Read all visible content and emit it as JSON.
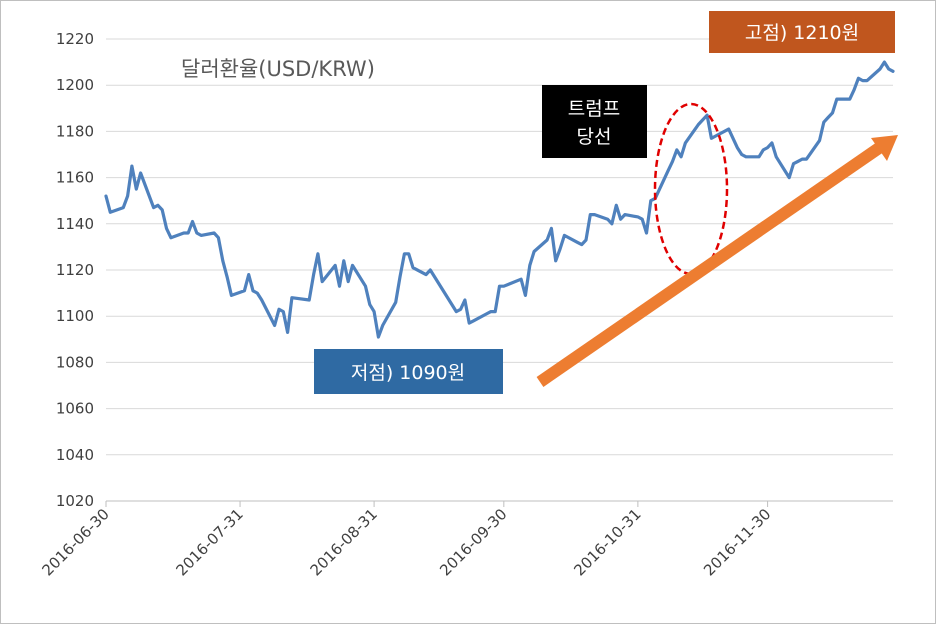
{
  "chart_data": {
    "type": "line",
    "title": "달러환율(USD/KRW)",
    "xlabel": "",
    "ylabel": "",
    "ylim": [
      1020,
      1220
    ],
    "yticks": [
      1020,
      1040,
      1060,
      1080,
      1100,
      1120,
      1140,
      1160,
      1180,
      1200,
      1220
    ],
    "x_ticks": [
      "2016-06-30",
      "2016-07-31",
      "2016-08-31",
      "2016-09-30",
      "2016-10-31",
      "2016-11-30"
    ],
    "grid": "horizontal",
    "line_color": "#4f81bd",
    "series": [
      {
        "x": [
          "2016-06-30",
          "2016-07-01",
          "2016-07-04",
          "2016-07-05",
          "2016-07-06",
          "2016-07-07",
          "2016-07-08",
          "2016-07-11",
          "2016-07-12",
          "2016-07-13",
          "2016-07-14",
          "2016-07-15",
          "2016-07-18",
          "2016-07-19",
          "2016-07-20",
          "2016-07-21",
          "2016-07-22",
          "2016-07-25",
          "2016-07-26",
          "2016-07-27",
          "2016-07-28",
          "2016-07-29",
          "2016-08-01",
          "2016-08-02",
          "2016-08-03",
          "2016-08-04",
          "2016-08-05",
          "2016-08-08",
          "2016-08-09",
          "2016-08-10",
          "2016-08-11",
          "2016-08-12",
          "2016-08-16",
          "2016-08-17",
          "2016-08-18",
          "2016-08-19",
          "2016-08-22",
          "2016-08-23",
          "2016-08-24",
          "2016-08-25",
          "2016-08-26",
          "2016-08-29",
          "2016-08-30",
          "2016-08-31",
          "2016-09-01",
          "2016-09-02",
          "2016-09-05",
          "2016-09-06",
          "2016-09-07",
          "2016-09-08",
          "2016-09-09",
          "2016-09-12",
          "2016-09-13",
          "2016-09-19",
          "2016-09-20",
          "2016-09-21",
          "2016-09-22",
          "2016-09-23",
          "2016-09-26",
          "2016-09-27",
          "2016-09-28",
          "2016-09-29",
          "2016-09-30",
          "2016-10-04",
          "2016-10-05",
          "2016-10-06",
          "2016-10-07",
          "2016-10-10",
          "2016-10-11",
          "2016-10-12",
          "2016-10-13",
          "2016-10-14",
          "2016-10-17",
          "2016-10-18",
          "2016-10-19",
          "2016-10-20",
          "2016-10-21",
          "2016-10-24",
          "2016-10-25",
          "2016-10-26",
          "2016-10-27",
          "2016-10-28",
          "2016-10-31",
          "2016-11-01",
          "2016-11-02",
          "2016-11-03",
          "2016-11-04",
          "2016-11-07",
          "2016-11-08",
          "2016-11-09",
          "2016-11-10",
          "2016-11-11",
          "2016-11-14",
          "2016-11-15",
          "2016-11-16",
          "2016-11-17",
          "2016-11-18",
          "2016-11-21",
          "2016-11-22",
          "2016-11-23",
          "2016-11-24",
          "2016-11-25",
          "2016-11-28",
          "2016-11-29",
          "2016-11-30",
          "2016-12-01",
          "2016-12-02",
          "2016-12-05",
          "2016-12-06",
          "2016-12-07",
          "2016-12-08",
          "2016-12-09",
          "2016-12-12",
          "2016-12-13",
          "2016-12-14",
          "2016-12-15",
          "2016-12-16",
          "2016-12-19",
          "2016-12-20",
          "2016-12-21",
          "2016-12-22",
          "2016-12-23",
          "2016-12-26",
          "2016-12-27",
          "2016-12-28",
          "2016-12-29"
        ],
        "y": [
          1152,
          1145,
          1147,
          1152,
          1165,
          1155,
          1162,
          1147,
          1148,
          1146,
          1138,
          1134,
          1136,
          1136,
          1141,
          1136,
          1135,
          1136,
          1134,
          1124,
          1117,
          1109,
          1111,
          1118,
          1111,
          1110,
          1107,
          1096,
          1103,
          1102,
          1093,
          1108,
          1107,
          1118,
          1127,
          1115,
          1122,
          1113,
          1124,
          1115,
          1122,
          1113,
          1105,
          1102,
          1091,
          1096,
          1106,
          1117,
          1127,
          1127,
          1121,
          1118,
          1120,
          1102,
          1103,
          1107,
          1097,
          1098,
          1101,
          1102,
          1102,
          1113,
          1113,
          1116,
          1109,
          1122,
          1128,
          1133,
          1138,
          1124,
          1129,
          1135,
          1132,
          1131,
          1133,
          1144,
          1144,
          1142,
          1140,
          1148,
          1142,
          1144,
          1143,
          1142,
          1136,
          1150,
          1151,
          1163,
          1167,
          1172,
          1169,
          1175,
          1183,
          1185,
          1187,
          1177,
          1178,
          1181,
          1177,
          1173,
          1170,
          1169,
          1169,
          1172,
          1173,
          1175,
          1169,
          1160,
          1166,
          1167,
          1168,
          1168,
          1176,
          1184,
          1186,
          1188,
          1194,
          1194,
          1198,
          1203,
          1202,
          1202,
          1207,
          1210,
          1207,
          1206
        ]
      }
    ],
    "annotations": {
      "low_label": "저점) 1090원",
      "high_label": "고점) 1210원",
      "event_label": "트럼프\n당선"
    },
    "annotation_colors": {
      "low_box": "#2f6aa3",
      "high_box": "#c0561e",
      "event_box": "#000000",
      "ellipse": "#e00000",
      "trend_arrow": "#ed7d31"
    }
  }
}
